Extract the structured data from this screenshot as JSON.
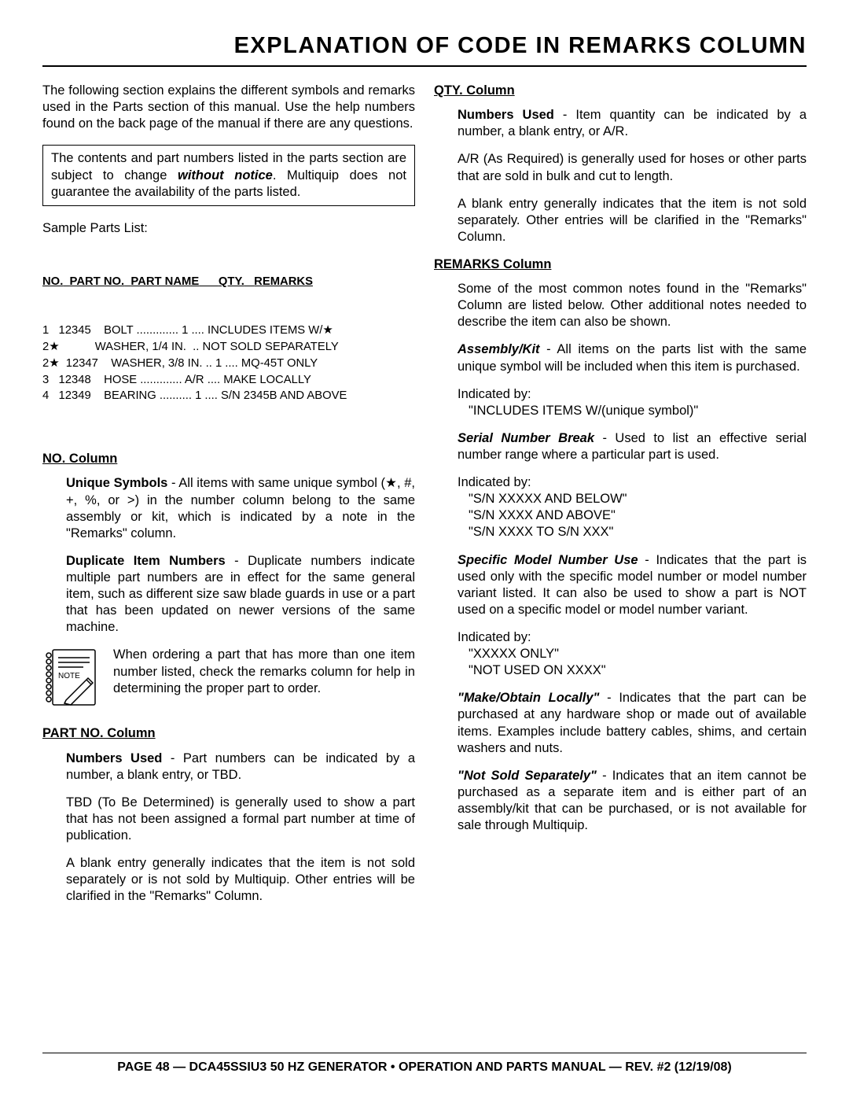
{
  "title": "EXPLANATION OF CODE IN REMARKS COLUMN",
  "intro": "The following section explains the different symbols and remarks used in the Parts section of this manual. Use the help numbers found on the back page of the manual if there are any questions.",
  "notice_pre": "The contents and part numbers listed in the parts section are subject to change ",
  "notice_em": "without notice",
  "notice_post": ". Multiquip does not guarantee the availability of the parts listed.",
  "sample_label": "Sample Parts List:",
  "parts_header": {
    "no": "NO.",
    "partno": "PART NO.",
    "partname": "PART NAME",
    "qty": "QTY.",
    "remarks": "REMARKS"
  },
  "parts_rows": [
    {
      "no": "1",
      "pn": "12345",
      "name": "BOLT",
      "qty": "1",
      "rem": "INCLUDES ITEMS W/★"
    },
    {
      "no": "2★",
      "pn": "",
      "name": "WASHER, 1/4 IN.",
      "qty": "",
      "rem": "NOT SOLD SEPARATELY"
    },
    {
      "no": "2★",
      "pn": "12347",
      "name": "WASHER, 3/8 IN.",
      "qty": "1",
      "rem": "MQ-45T ONLY"
    },
    {
      "no": "3",
      "pn": "12348",
      "name": "HOSE",
      "qty": "A/R",
      "rem": "MAKE LOCALLY"
    },
    {
      "no": "4",
      "pn": "12349",
      "name": "BEARING",
      "qty": "1",
      "rem": "S/N 2345B AND ABOVE"
    }
  ],
  "no_col": {
    "heading": "NO. Column",
    "unique_lead": "Unique Symbols",
    "unique_body": " - All items with same unique symbol (★, #, +, %, or >) in the number column belong to the same assembly or kit, which is indicated by a note in the \"Remarks\" column.",
    "dup_lead": "Duplicate Item Numbers",
    "dup_body": " - Duplicate numbers indicate multiple part numbers are in effect for the same general item, such as different size saw blade guards in use or a part that has been updated on newer versions of the same machine.",
    "note_text": "When ordering a part that has more than one item number listed, check the remarks column for help in determining the proper part to order.",
    "note_word": "NOTE"
  },
  "partno_col": {
    "heading": "PART NO. Column",
    "nums_lead": "Numbers Used",
    "nums_body": " - Part numbers can be indicated by a number, a blank entry, or TBD.",
    "tbd": "TBD (To Be Determined) is generally used to show a part that has not been assigned a formal part number at time of publication.",
    "blank": "A blank entry generally indicates that the item is not sold separately or is not sold by Multiquip. Other entries will be clarified in the \"Remarks\" Column."
  },
  "qty_col": {
    "heading": "QTY. Column",
    "nums_lead": "Numbers Used",
    "nums_body": " - Item quantity can be indicated by a number, a blank entry, or A/R.",
    "ar": "A/R (As Required) is generally used for hoses or other parts that are sold in bulk and cut to length.",
    "blank": "A blank entry generally indicates that the item is not sold separately. Other entries will be clarified in the \"Remarks\" Column."
  },
  "remarks_col": {
    "heading": "REMARKS Column",
    "intro": "Some of the most common notes found in the \"Remarks\" Column are listed below. Other additional notes needed to describe the item can also be shown.",
    "asm_lead": "Assembly/Kit",
    "asm_body": " - All items on the parts list with the same unique symbol will be included when this item is purchased.",
    "indicated": "Indicated by:",
    "asm_quote": "\"INCLUDES ITEMS W/(unique symbol)\"",
    "snb_lead": "Serial Number Break",
    "snb_body": " - Used to list an effective serial number range where a particular part is used.",
    "snb_q1": "\"S/N XXXXX AND BELOW\"",
    "snb_q2": "\"S/N XXXX AND ABOVE\"",
    "snb_q3": "\"S/N XXXX TO S/N XXX\"",
    "smn_lead": "Specific Model Number Use",
    "smn_body": " - Indicates that the part is used only with the specific model number or model number variant listed. It can also be used to show a part is NOT used on a specific model or model number variant.",
    "smn_q1": "\"XXXXX ONLY\"",
    "smn_q2": "\"NOT USED ON XXXX\"",
    "make_lead": "\"Make/Obtain Locally\"",
    "make_body": " - Indicates that the part can be purchased at any hardware shop or made out of available items. Examples include battery cables, shims, and certain washers and nuts.",
    "nss_lead": "\"Not Sold Separately\"",
    "nss_body": " - Indicates that an item cannot be purchased as a separate item and is either part of an assembly/kit that can be purchased, or is not available for sale through Multiquip."
  },
  "footer": "PAGE 48 — DCA45SSIU3 50 HZ GENERATOR • OPERATION AND PARTS MANUAL — REV. #2 (12/19/08)"
}
